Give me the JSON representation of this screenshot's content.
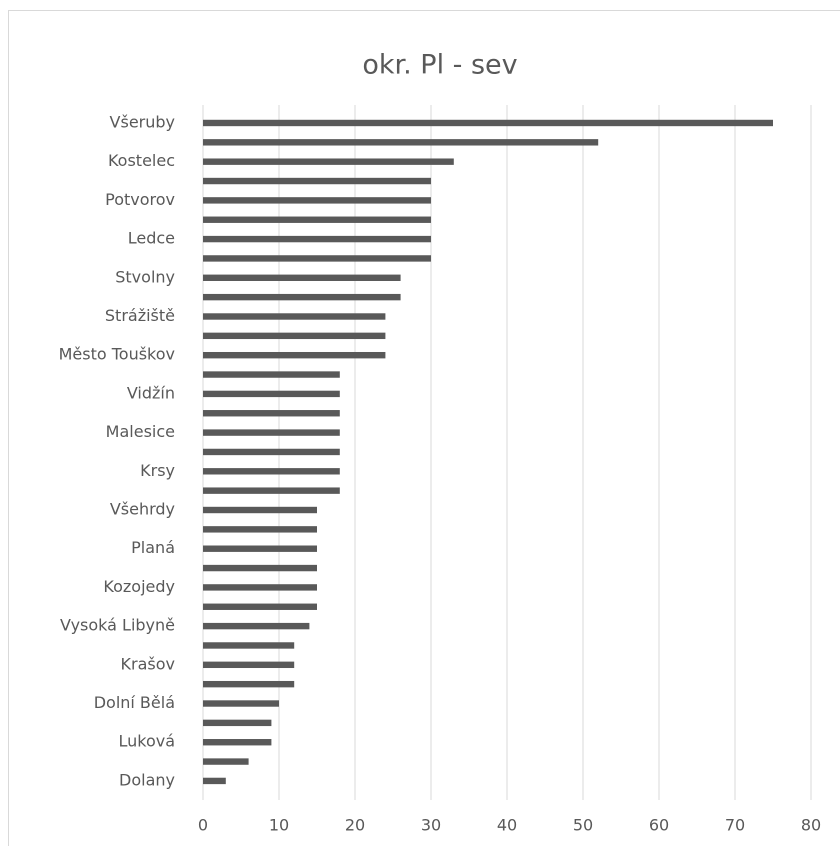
{
  "chart_data": {
    "type": "bar",
    "orientation": "horizontal",
    "title": "okr. Pl - sev",
    "categories": [
      "Všeruby",
      null,
      "Kostelec",
      null,
      "Potvorov",
      null,
      "Ledce",
      null,
      "Stvolny",
      null,
      "Strážiště",
      null,
      "Město Touškov",
      null,
      "Vidžín",
      null,
      "Malesice",
      null,
      "Krsy",
      null,
      "Všehrdy",
      null,
      "Planá",
      null,
      "Kozojedy",
      null,
      "Vysoká Libyně",
      null,
      "Krašov",
      null,
      "Dolní Bělá",
      null,
      "Luková",
      null,
      "Dolany"
    ],
    "values": [
      75,
      52,
      33,
      30,
      30,
      30,
      30,
      30,
      26,
      26,
      24,
      24,
      24,
      18,
      18,
      18,
      18,
      18,
      18,
      18,
      15,
      15,
      15,
      15,
      15,
      15,
      14,
      12,
      12,
      12,
      10,
      9,
      9,
      6,
      3
    ],
    "color": "#595959",
    "xlim": [
      0,
      80
    ],
    "xticks": [
      0,
      10,
      20,
      30,
      40,
      50,
      60,
      70,
      80
    ],
    "grid": true
  }
}
